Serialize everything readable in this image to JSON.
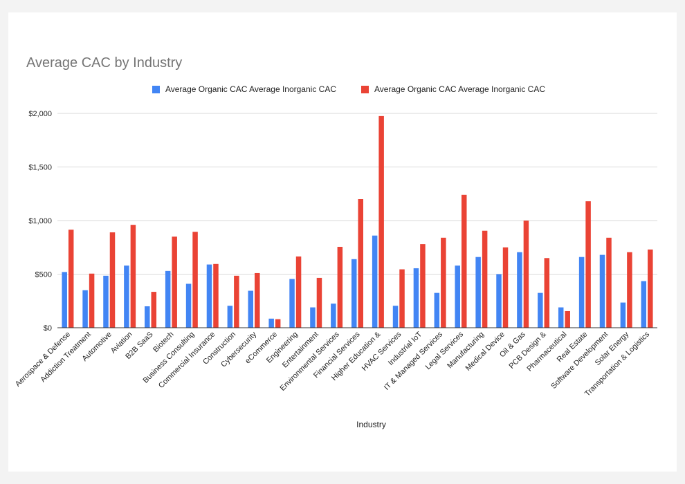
{
  "colors": {
    "organic": "#4285f4",
    "inorganic": "#ea4335",
    "grid": "#d9d9d9",
    "axis": "#333333",
    "text": "#222222"
  },
  "chart_data": {
    "type": "bar",
    "title": "Average CAC by Industry",
    "xlabel": "Industry",
    "ylabel": "",
    "ylim": [
      0,
      2000
    ],
    "yticks": [
      "$0",
      "$500",
      "$1,000",
      "$1,500",
      "$2,000"
    ],
    "ytick_values": [
      0,
      500,
      1000,
      1500,
      2000
    ],
    "grid": true,
    "legend_position": "top",
    "categories": [
      "Aerospace & Defense",
      "Addiction Treatment",
      "Automotive",
      "Aviation",
      "B2B SaaS",
      "Biotech",
      "Business Consulting",
      "Commercial Insurance",
      "Construction",
      "Cybersecurity",
      "eCommerce",
      "Engineering",
      "Entertainment",
      "Environmental Services",
      "Financial Services",
      "Higher Education &",
      "HVAC Services",
      "Industrial IoT",
      "IT & Managed Services",
      "Legal Services",
      "Manufacturing",
      "Medical Device",
      "Oil & Gas",
      "PCB Design &",
      "Pharmaceutical",
      "Real Estate",
      "Software Development",
      "Solar Energy",
      "Transportation & Logistics"
    ],
    "series": [
      {
        "name": "Average Organic CAC Average Inorganic CAC",
        "color": "#4285f4",
        "values": [
          520,
          350,
          485,
          580,
          200,
          530,
          410,
          590,
          205,
          345,
          85,
          455,
          190,
          225,
          640,
          860,
          205,
          555,
          325,
          580,
          660,
          500,
          705,
          325,
          190,
          660,
          680,
          235,
          435
        ]
      },
      {
        "name": "Average Organic CAC Average Inorganic CAC",
        "color": "#ea4335",
        "values": [
          915,
          505,
          890,
          960,
          335,
          850,
          895,
          595,
          485,
          510,
          80,
          665,
          465,
          755,
          1200,
          1975,
          545,
          780,
          840,
          1240,
          905,
          750,
          1000,
          650,
          155,
          1180,
          840,
          705,
          730
        ]
      }
    ]
  }
}
